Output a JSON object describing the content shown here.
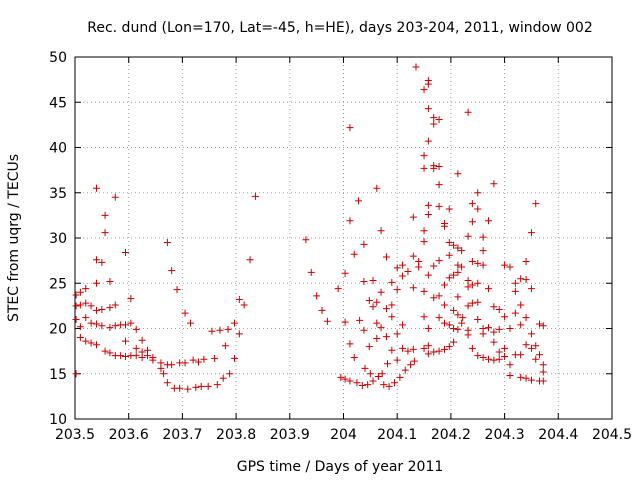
{
  "chart_data": {
    "type": "scatter",
    "title": "Rec. dund (Lon=170, Lat=-45, h=HE), days 203-204, 2011, window 002",
    "xlabel": "GPS time / Days of year 2011",
    "ylabel": "STEC from uqrg / TECUs",
    "xlim": [
      203.5,
      204.5
    ],
    "ylim": [
      10,
      50
    ],
    "xticks": [
      "203.5",
      "203.6",
      "203.7",
      "203.8",
      "203.9",
      "204",
      "204.1",
      "204.2",
      "204.3",
      "204.4",
      "204.5"
    ],
    "xtick_values": [
      203.5,
      203.6,
      203.7,
      203.8,
      203.9,
      204.0,
      204.1,
      204.2,
      204.3,
      204.4,
      204.5
    ],
    "yticks": [
      "10",
      "15",
      "20",
      "25",
      "30",
      "35",
      "40",
      "45",
      "50"
    ],
    "ytick_values": [
      10,
      15,
      20,
      25,
      30,
      35,
      40,
      45,
      50
    ],
    "grid": true,
    "marker": "+",
    "color": "#cc0000",
    "series": [
      {
        "name": "STEC",
        "points": [
          [
            203.502,
            15.0
          ],
          [
            203.502,
            21.0
          ],
          [
            203.502,
            22.5
          ],
          [
            203.502,
            23.7
          ],
          [
            203.51,
            24.0
          ],
          [
            203.51,
            22.6
          ],
          [
            203.51,
            20.2
          ],
          [
            203.51,
            19.0
          ],
          [
            203.52,
            21.2
          ],
          [
            203.52,
            22.8
          ],
          [
            203.52,
            18.6
          ],
          [
            203.52,
            24.4
          ],
          [
            203.53,
            20.6
          ],
          [
            203.53,
            22.5
          ],
          [
            203.53,
            18.4
          ],
          [
            203.54,
            35.5
          ],
          [
            203.54,
            27.6
          ],
          [
            203.54,
            25.0
          ],
          [
            203.54,
            22.0
          ],
          [
            203.54,
            20.5
          ],
          [
            203.54,
            18.2
          ],
          [
            203.55,
            27.3
          ],
          [
            203.55,
            22.1
          ],
          [
            203.55,
            20.3
          ],
          [
            203.556,
            32.5
          ],
          [
            203.556,
            30.6
          ],
          [
            203.556,
            17.5
          ],
          [
            203.565,
            25.2
          ],
          [
            203.565,
            22.3
          ],
          [
            203.565,
            20.1
          ],
          [
            203.565,
            17.3
          ],
          [
            203.575,
            34.5
          ],
          [
            203.575,
            22.6
          ],
          [
            203.575,
            20.3
          ],
          [
            203.575,
            17.0
          ],
          [
            203.585,
            20.4
          ],
          [
            203.585,
            17.0
          ],
          [
            203.594,
            28.4
          ],
          [
            203.594,
            20.4
          ],
          [
            203.594,
            18.6
          ],
          [
            203.594,
            16.9
          ],
          [
            203.604,
            23.3
          ],
          [
            203.604,
            20.6
          ],
          [
            203.604,
            17.0
          ],
          [
            203.614,
            19.9
          ],
          [
            203.614,
            17.8
          ],
          [
            203.614,
            17.0
          ],
          [
            203.625,
            18.7
          ],
          [
            203.625,
            17.4
          ],
          [
            203.625,
            16.8
          ],
          [
            203.635,
            17.6
          ],
          [
            203.635,
            17.0
          ],
          [
            203.645,
            16.8
          ],
          [
            203.645,
            16.5
          ],
          [
            203.66,
            16.2
          ],
          [
            203.66,
            15.6
          ],
          [
            203.665,
            15.0
          ],
          [
            203.672,
            29.5
          ],
          [
            203.672,
            16.0
          ],
          [
            203.672,
            14.0
          ],
          [
            203.68,
            26.4
          ],
          [
            203.68,
            16.0
          ],
          [
            203.685,
            13.4
          ],
          [
            203.69,
            24.3
          ],
          [
            203.695,
            16.2
          ],
          [
            203.695,
            13.4
          ],
          [
            203.705,
            21.7
          ],
          [
            203.705,
            16.2
          ],
          [
            203.71,
            13.3
          ],
          [
            203.715,
            20.6
          ],
          [
            203.72,
            16.5
          ],
          [
            203.725,
            13.5
          ],
          [
            203.73,
            16.3
          ],
          [
            203.735,
            13.6
          ],
          [
            203.74,
            16.6
          ],
          [
            203.748,
            13.6
          ],
          [
            203.755,
            19.7
          ],
          [
            203.76,
            16.7
          ],
          [
            203.765,
            13.8
          ],
          [
            203.77,
            19.8
          ],
          [
            203.776,
            14.5
          ],
          [
            203.78,
            18.1
          ],
          [
            203.785,
            19.9
          ],
          [
            203.788,
            15.0
          ],
          [
            203.797,
            20.6
          ],
          [
            203.797,
            16.7
          ],
          [
            203.806,
            23.2
          ],
          [
            203.806,
            19.4
          ],
          [
            203.815,
            22.6
          ],
          [
            203.826,
            27.6
          ],
          [
            203.836,
            34.6
          ],
          [
            203.93,
            29.8
          ],
          [
            203.94,
            26.2
          ],
          [
            203.95,
            23.6
          ],
          [
            203.96,
            22.0
          ],
          [
            203.97,
            20.8
          ],
          [
            203.99,
            24.4
          ],
          [
            203.995,
            14.6
          ],
          [
            204.003,
            26.1
          ],
          [
            204.003,
            20.7
          ],
          [
            204.003,
            14.4
          ],
          [
            204.012,
            42.2
          ],
          [
            204.012,
            31.9
          ],
          [
            204.012,
            18.3
          ],
          [
            204.012,
            14.2
          ],
          [
            204.02,
            28.2
          ],
          [
            204.02,
            16.8
          ],
          [
            204.025,
            14.0
          ],
          [
            204.028,
            34.1
          ],
          [
            204.03,
            20.9
          ],
          [
            204.035,
            13.7
          ],
          [
            204.038,
            29.3
          ],
          [
            204.038,
            25.2
          ],
          [
            204.038,
            19.8
          ],
          [
            204.04,
            15.6
          ],
          [
            204.045,
            13.8
          ],
          [
            204.048,
            23.1
          ],
          [
            204.048,
            18.0
          ],
          [
            204.05,
            15.0
          ],
          [
            204.055,
            25.3
          ],
          [
            204.055,
            22.4
          ],
          [
            204.055,
            14.2
          ],
          [
            204.062,
            35.5
          ],
          [
            204.062,
            22.9
          ],
          [
            204.062,
            20.6
          ],
          [
            204.062,
            18.9
          ],
          [
            204.065,
            14.7
          ],
          [
            204.07,
            30.8
          ],
          [
            204.07,
            24.0
          ],
          [
            204.07,
            20.1
          ],
          [
            204.072,
            15.0
          ],
          [
            204.075,
            13.8
          ],
          [
            204.08,
            27.9
          ],
          [
            204.08,
            22.2
          ],
          [
            204.08,
            19.1
          ],
          [
            204.082,
            16.1
          ],
          [
            204.085,
            13.6
          ],
          [
            204.09,
            25.1
          ],
          [
            204.09,
            22.6
          ],
          [
            204.09,
            21.3
          ],
          [
            204.09,
            17.6
          ],
          [
            204.095,
            14.0
          ],
          [
            204.1,
            26.7
          ],
          [
            204.1,
            24.3
          ],
          [
            204.1,
            19.4
          ],
          [
            204.1,
            16.5
          ],
          [
            204.105,
            14.6
          ],
          [
            204.11,
            27.0
          ],
          [
            204.11,
            25.8
          ],
          [
            204.11,
            20.4
          ],
          [
            204.11,
            17.8
          ],
          [
            204.115,
            15.4
          ],
          [
            204.12,
            26.3
          ],
          [
            204.12,
            17.5
          ],
          [
            204.125,
            16.0
          ],
          [
            204.13,
            32.3
          ],
          [
            204.13,
            28.0
          ],
          [
            204.13,
            24.5
          ],
          [
            204.13,
            17.7
          ],
          [
            204.132,
            16.4
          ],
          [
            204.135,
            48.9
          ],
          [
            204.14,
            27.4
          ],
          [
            204.14,
            26.8
          ],
          [
            204.15,
            46.4
          ],
          [
            204.15,
            39.1
          ],
          [
            204.15,
            37.7
          ],
          [
            204.15,
            30.8
          ],
          [
            204.15,
            29.6
          ],
          [
            204.15,
            24.1
          ],
          [
            204.15,
            21.3
          ],
          [
            204.15,
            17.8
          ],
          [
            204.158,
            47.0
          ],
          [
            204.158,
            47.4
          ],
          [
            204.158,
            44.3
          ],
          [
            204.158,
            40.7
          ],
          [
            204.158,
            33.6
          ],
          [
            204.158,
            32.6
          ],
          [
            204.158,
            25.9
          ],
          [
            204.158,
            20.0
          ],
          [
            204.158,
            18.1
          ],
          [
            204.158,
            17.2
          ],
          [
            204.168,
            43.3
          ],
          [
            204.168,
            42.6
          ],
          [
            204.168,
            38.0
          ],
          [
            204.168,
            37.7
          ],
          [
            204.168,
            26.9
          ],
          [
            204.168,
            23.4
          ],
          [
            204.168,
            17.4
          ],
          [
            204.178,
            43.1
          ],
          [
            204.178,
            37.9
          ],
          [
            204.178,
            35.9
          ],
          [
            204.178,
            33.5
          ],
          [
            204.178,
            27.5
          ],
          [
            204.178,
            23.6
          ],
          [
            204.178,
            21.2
          ],
          [
            204.178,
            17.5
          ],
          [
            204.188,
            31.6
          ],
          [
            204.188,
            31.3
          ],
          [
            204.188,
            24.8
          ],
          [
            204.188,
            22.6
          ],
          [
            204.188,
            20.6
          ],
          [
            204.188,
            17.7
          ],
          [
            204.197,
            33.2
          ],
          [
            204.197,
            29.5
          ],
          [
            204.197,
            28.1
          ],
          [
            204.197,
            25.6
          ],
          [
            204.197,
            20.4
          ],
          [
            204.197,
            18.0
          ],
          [
            204.205,
            29.2
          ],
          [
            204.205,
            25.9
          ],
          [
            204.205,
            22.0
          ],
          [
            204.205,
            20.0
          ],
          [
            204.205,
            18.5
          ],
          [
            204.213,
            37.1
          ],
          [
            204.213,
            28.9
          ],
          [
            204.213,
            27.0
          ],
          [
            204.213,
            26.2
          ],
          [
            204.213,
            23.5
          ],
          [
            204.213,
            21.5
          ],
          [
            204.213,
            19.9
          ],
          [
            204.22,
            28.6
          ],
          [
            204.22,
            26.8
          ],
          [
            204.22,
            20.6
          ],
          [
            204.222,
            21.2
          ],
          [
            204.232,
            43.9
          ],
          [
            204.232,
            30.2
          ],
          [
            204.232,
            25.3
          ],
          [
            204.232,
            24.6
          ],
          [
            204.232,
            22.5
          ],
          [
            204.232,
            19.8
          ],
          [
            204.232,
            19.3
          ],
          [
            204.24,
            33.8
          ],
          [
            204.24,
            31.8
          ],
          [
            204.24,
            27.4
          ],
          [
            204.24,
            24.8
          ],
          [
            204.24,
            22.8
          ],
          [
            204.24,
            17.8
          ],
          [
            204.25,
            35.0
          ],
          [
            204.25,
            33.2
          ],
          [
            204.25,
            27.2
          ],
          [
            204.25,
            25.0
          ],
          [
            204.25,
            22.9
          ],
          [
            204.25,
            21.0
          ],
          [
            204.25,
            17.0
          ],
          [
            204.26,
            30.1
          ],
          [
            204.26,
            28.6
          ],
          [
            204.26,
            27.0
          ],
          [
            204.26,
            20.0
          ],
          [
            204.26,
            19.4
          ],
          [
            204.26,
            16.8
          ],
          [
            204.27,
            31.9
          ],
          [
            204.27,
            24.4
          ],
          [
            204.27,
            20.1
          ],
          [
            204.27,
            16.6
          ],
          [
            204.28,
            36.0
          ],
          [
            204.28,
            22.4
          ],
          [
            204.28,
            19.6
          ],
          [
            204.28,
            18.5
          ],
          [
            204.28,
            16.5
          ],
          [
            204.29,
            22.1
          ],
          [
            204.29,
            19.9
          ],
          [
            204.29,
            17.4
          ],
          [
            204.29,
            16.6
          ],
          [
            204.3,
            27.0
          ],
          [
            204.3,
            21.3
          ],
          [
            204.3,
            17.8
          ],
          [
            204.3,
            16.9
          ],
          [
            204.31,
            26.8
          ],
          [
            204.31,
            20.0
          ],
          [
            204.31,
            16.0
          ],
          [
            204.31,
            14.8
          ],
          [
            204.32,
            25.0
          ],
          [
            204.32,
            24.1
          ],
          [
            204.32,
            21.7
          ],
          [
            204.32,
            17.1
          ],
          [
            204.33,
            25.5
          ],
          [
            204.33,
            22.6
          ],
          [
            204.33,
            20.4
          ],
          [
            204.33,
            17.1
          ],
          [
            204.33,
            14.6
          ],
          [
            204.34,
            27.4
          ],
          [
            204.34,
            25.4
          ],
          [
            204.34,
            21.2
          ],
          [
            204.34,
            18.2
          ],
          [
            204.34,
            14.5
          ],
          [
            204.35,
            30.6
          ],
          [
            204.35,
            24.4
          ],
          [
            204.35,
            19.4
          ],
          [
            204.35,
            17.8
          ],
          [
            204.35,
            14.3
          ],
          [
            204.358,
            33.8
          ],
          [
            204.358,
            18.1
          ],
          [
            204.358,
            16.6
          ],
          [
            204.365,
            20.5
          ],
          [
            204.365,
            17.1
          ],
          [
            204.365,
            14.2
          ],
          [
            204.372,
            20.3
          ],
          [
            204.372,
            16.0
          ],
          [
            204.372,
            15.2
          ],
          [
            204.372,
            14.2
          ]
        ]
      }
    ]
  }
}
